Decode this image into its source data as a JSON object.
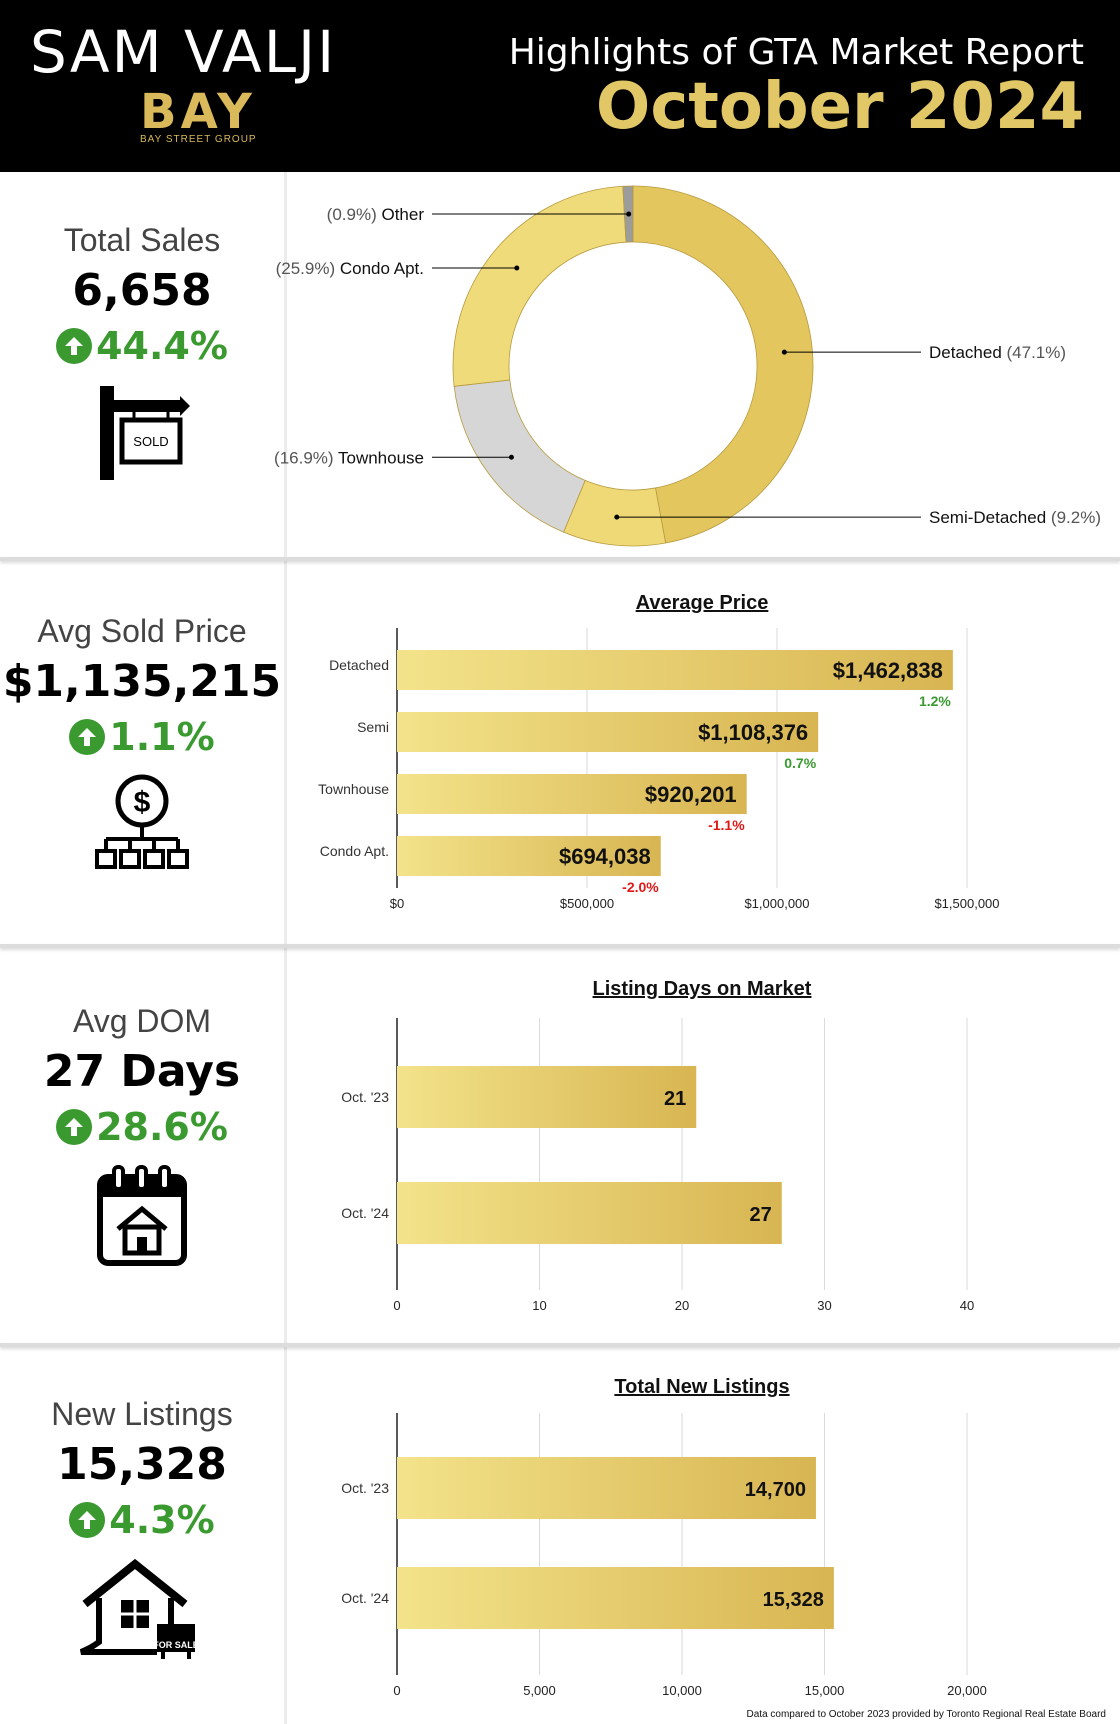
{
  "header": {
    "agent_name": "SAM VALJI",
    "logo_text": "BAY",
    "logo_subtext": "BAY STREET GROUP",
    "report_title": "Highlights of GTA Market Report",
    "report_date": "October 2024"
  },
  "colors": {
    "gold_light": "#f3e38a",
    "gold_dark": "#d8b552",
    "positive": "#3a9a30",
    "negative": "#e01818",
    "gray_slice": "#d0d0d0"
  },
  "stats": [
    {
      "label": "Total Sales",
      "value": "6,658",
      "change": "44.4%",
      "icon": "sold-sign-icon",
      "icon_text": "SOLD"
    },
    {
      "label": "Avg Sold Price",
      "value": "$1,135,215",
      "change": "1.1%",
      "icon": "dollar-network-icon"
    },
    {
      "label": "Avg DOM",
      "value": "27 Days",
      "change": "28.6%",
      "icon": "calendar-house-icon"
    },
    {
      "label": "New Listings",
      "value": "15,328",
      "change": "4.3%",
      "icon": "house-for-sale-icon",
      "icon_text": "FOR SALE"
    }
  ],
  "chart_data": [
    {
      "type": "pie",
      "title": "",
      "slices": [
        {
          "name": "Detached",
          "pct_label": "(47.1%)",
          "value": 47.1,
          "color": "#e4c65e"
        },
        {
          "name": "Semi-Detached",
          "pct_label": "(9.2%)",
          "value": 9.2,
          "color": "#efd977"
        },
        {
          "name": "Townhouse",
          "pct_label": "(16.9%)",
          "value": 16.9,
          "color": "#d6d6d6"
        },
        {
          "name": "Condo Apt.",
          "pct_label": "(25.9%)",
          "value": 25.9,
          "color": "#f0db7b"
        },
        {
          "name": "Other",
          "pct_label": "(0.9%)",
          "value": 0.9,
          "color": "#9c9c9c"
        }
      ]
    },
    {
      "type": "bar",
      "orientation": "horizontal",
      "title": "Average Price",
      "categories": [
        "Detached",
        "Semi",
        "Townhouse",
        "Condo Apt."
      ],
      "values": [
        1462838,
        1108376,
        920201,
        694038
      ],
      "value_labels": [
        "$1,462,838",
        "$1,108,376",
        "$920,201",
        "$694,038"
      ],
      "change_labels": [
        "1.2%",
        "0.7%",
        "-1.1%",
        "-2.0%"
      ],
      "xlim": [
        0,
        1500000
      ],
      "xticks": [
        0,
        500000,
        1000000,
        1500000
      ],
      "xtick_labels": [
        "$0",
        "$500,000",
        "$1,000,000",
        "$1,500,000"
      ],
      "grid": true
    },
    {
      "type": "bar",
      "orientation": "horizontal",
      "title": "Listing Days on Market",
      "categories": [
        "Oct. '23",
        "Oct. '24"
      ],
      "values": [
        21,
        27
      ],
      "value_labels": [
        "21",
        "27"
      ],
      "xlim": [
        0,
        40
      ],
      "xticks": [
        0,
        10,
        20,
        30,
        40
      ],
      "xtick_labels": [
        "0",
        "10",
        "20",
        "30",
        "40"
      ],
      "grid": true
    },
    {
      "type": "bar",
      "orientation": "horizontal",
      "title": "Total New Listings",
      "categories": [
        "Oct. '23",
        "Oct. '24"
      ],
      "values": [
        14700,
        15328
      ],
      "value_labels": [
        "14,700",
        "15,328"
      ],
      "xlim": [
        0,
        20000
      ],
      "xticks": [
        0,
        5000,
        10000,
        15000,
        20000
      ],
      "xtick_labels": [
        "0",
        "5,000",
        "10,000",
        "15,000",
        "20,000"
      ],
      "grid": true
    }
  ],
  "footer": {
    "note": "Data compared to October 2023 provided by Toronto Regional Real Estate Board"
  }
}
